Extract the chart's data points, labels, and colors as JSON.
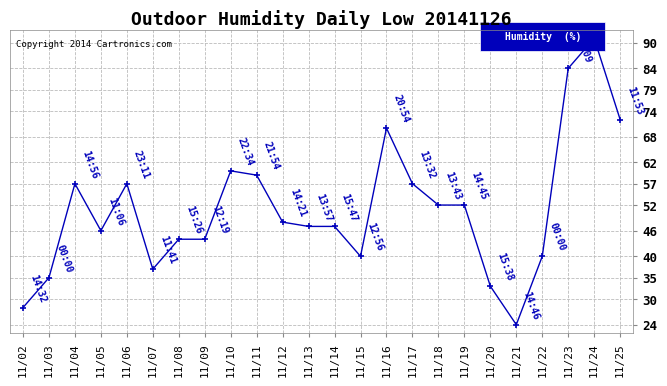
{
  "title": "Outdoor Humidity Daily Low 20141126",
  "copyright": "Copyright 2014 Cartronics.com",
  "legend_label": "Humidity  (%)",
  "ylim": [
    22,
    93
  ],
  "yticks": [
    24,
    30,
    35,
    40,
    46,
    52,
    57,
    62,
    68,
    74,
    79,
    84,
    90
  ],
  "x_labels": [
    "11/02",
    "11/03",
    "11/04",
    "11/05",
    "11/06",
    "11/07",
    "11/08",
    "11/09",
    "11/10",
    "11/11",
    "11/12",
    "11/13",
    "11/14",
    "11/15",
    "11/16",
    "11/17",
    "11/18",
    "11/19",
    "11/20",
    "11/21",
    "11/22",
    "11/23",
    "11/24",
    "11/25"
  ],
  "y_values": [
    28,
    35,
    57,
    46,
    57,
    37,
    44,
    44,
    60,
    59,
    48,
    47,
    47,
    40,
    70,
    57,
    52,
    52,
    33,
    24,
    40,
    84,
    91,
    72
  ],
  "point_labels": [
    "14:32",
    "00:00",
    "14:56",
    "11:06",
    "23:11",
    "11:41",
    "15:26",
    "12:19",
    "22:34",
    "21:54",
    "14:21",
    "13:57",
    "15:47",
    "12:56",
    "20:54",
    "13:32",
    "13:43",
    "14:45",
    "15:38",
    "14:46",
    "00:00",
    "14:09",
    "",
    "11:53"
  ],
  "line_color": "#0000bb",
  "bg_color": "#ffffff",
  "grid_color": "#bbbbbb",
  "title_fontsize": 13,
  "tick_fontsize": 8,
  "annot_fontsize": 7
}
